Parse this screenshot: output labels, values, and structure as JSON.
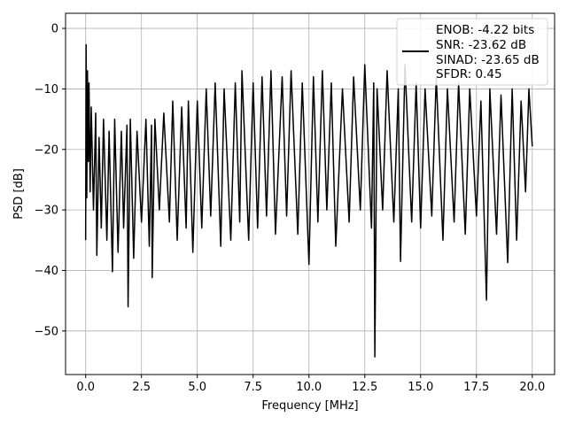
{
  "chart_data": {
    "type": "line",
    "title": "",
    "xlabel": "Frequency [MHz]",
    "ylabel": "PSD [dB]",
    "xlim": [
      -0.9,
      21.0
    ],
    "ylim": [
      -57.2,
      2.5
    ],
    "xticks": [
      0.0,
      2.5,
      5.0,
      7.5,
      10.0,
      12.5,
      15.0,
      17.5,
      20.0
    ],
    "xtick_labels": [
      "0.0",
      "2.5",
      "5.0",
      "7.5",
      "10.0",
      "12.5",
      "15.0",
      "17.5",
      "20.0"
    ],
    "yticks": [
      0,
      -10,
      -20,
      -30,
      -40,
      -50
    ],
    "ytick_labels": [
      "0",
      "−10",
      "−20",
      "−30",
      "−40",
      "−50"
    ],
    "grid": true,
    "legend_position": "top-right",
    "legend_lines": [
      "ENOB: -4.22 bits",
      "SNR: -23.62 dB",
      "SINAD: -23.65 dB",
      "SFDR: 0.45"
    ],
    "line_color": "#000000",
    "series": [
      {
        "points": [
          [
            0.0,
            -35.0
          ],
          [
            0.02,
            -2.7
          ],
          [
            0.05,
            -28.0
          ],
          [
            0.08,
            -7.0
          ],
          [
            0.12,
            -22.0
          ],
          [
            0.15,
            -9.0
          ],
          [
            0.2,
            -27.0
          ],
          [
            0.25,
            -13.0
          ],
          [
            0.35,
            -30.0
          ],
          [
            0.45,
            -14.0
          ],
          [
            0.5,
            -37.5
          ],
          [
            0.6,
            -18.0
          ],
          [
            0.7,
            -33.0
          ],
          [
            0.8,
            -15.0
          ],
          [
            0.95,
            -35.0
          ],
          [
            1.05,
            -17.0
          ],
          [
            1.2,
            -40.2
          ],
          [
            1.3,
            -15.0
          ],
          [
            1.45,
            -37.0
          ],
          [
            1.6,
            -17.0
          ],
          [
            1.7,
            -33.0
          ],
          [
            1.85,
            -16.0
          ],
          [
            1.9,
            -46.0
          ],
          [
            2.0,
            -15.0
          ],
          [
            2.15,
            -38.0
          ],
          [
            2.3,
            -17.0
          ],
          [
            2.5,
            -32.0
          ],
          [
            2.7,
            -15.0
          ],
          [
            2.85,
            -36.0
          ],
          [
            2.95,
            -16.0
          ],
          [
            2.98,
            -41.2
          ],
          [
            3.1,
            -15.0
          ],
          [
            3.3,
            -30.0
          ],
          [
            3.5,
            -14.0
          ],
          [
            3.75,
            -32.0
          ],
          [
            3.9,
            -12.0
          ],
          [
            4.1,
            -35.0
          ],
          [
            4.3,
            -13.0
          ],
          [
            4.5,
            -33.0
          ],
          [
            4.6,
            -12.0
          ],
          [
            4.8,
            -37.0
          ],
          [
            5.0,
            -12.0
          ],
          [
            5.2,
            -33.0
          ],
          [
            5.4,
            -10.0
          ],
          [
            5.6,
            -31.0
          ],
          [
            5.8,
            -9.0
          ],
          [
            6.05,
            -36.0
          ],
          [
            6.2,
            -10.0
          ],
          [
            6.5,
            -35.0
          ],
          [
            6.7,
            -9.0
          ],
          [
            6.9,
            -32.0
          ],
          [
            7.0,
            -7.0
          ],
          [
            7.3,
            -35.0
          ],
          [
            7.5,
            -9.0
          ],
          [
            7.7,
            -33.0
          ],
          [
            7.9,
            -8.0
          ],
          [
            8.1,
            -31.0
          ],
          [
            8.3,
            -7.0
          ],
          [
            8.5,
            -34.0
          ],
          [
            8.8,
            -8.0
          ],
          [
            9.0,
            -31.0
          ],
          [
            9.2,
            -7.0
          ],
          [
            9.5,
            -34.0
          ],
          [
            9.7,
            -9.0
          ],
          [
            10.0,
            -39.0
          ],
          [
            10.2,
            -8.0
          ],
          [
            10.4,
            -32.0
          ],
          [
            10.6,
            -7.0
          ],
          [
            10.8,
            -30.0
          ],
          [
            11.0,
            -9.0
          ],
          [
            11.2,
            -36.0
          ],
          [
            11.5,
            -10.0
          ],
          [
            11.8,
            -32.0
          ],
          [
            12.0,
            -8.0
          ],
          [
            12.3,
            -30.0
          ],
          [
            12.5,
            -6.0
          ],
          [
            12.8,
            -33.0
          ],
          [
            12.9,
            -9.0
          ],
          [
            12.95,
            -54.3
          ],
          [
            13.05,
            -10.0
          ],
          [
            13.3,
            -30.0
          ],
          [
            13.5,
            -7.0
          ],
          [
            13.8,
            -32.0
          ],
          [
            14.0,
            -10.0
          ],
          [
            14.1,
            -38.5
          ],
          [
            14.3,
            -6.0
          ],
          [
            14.6,
            -32.0
          ],
          [
            14.8,
            -9.0
          ],
          [
            15.0,
            -33.0
          ],
          [
            15.2,
            -10.0
          ],
          [
            15.5,
            -31.0
          ],
          [
            15.7,
            -8.0
          ],
          [
            16.0,
            -35.0
          ],
          [
            16.2,
            -10.0
          ],
          [
            16.5,
            -32.0
          ],
          [
            16.7,
            -9.0
          ],
          [
            17.0,
            -34.0
          ],
          [
            17.2,
            -10.0
          ],
          [
            17.5,
            -31.0
          ],
          [
            17.7,
            -12.0
          ],
          [
            17.95,
            -44.9
          ],
          [
            18.1,
            -10.0
          ],
          [
            18.4,
            -34.0
          ],
          [
            18.6,
            -11.0
          ],
          [
            18.9,
            -38.7
          ],
          [
            19.1,
            -10.0
          ],
          [
            19.3,
            -35.0
          ],
          [
            19.5,
            -12.0
          ],
          [
            19.7,
            -27.0
          ],
          [
            19.85,
            -10.0
          ],
          [
            20.0,
            -19.5
          ]
        ]
      }
    ]
  }
}
